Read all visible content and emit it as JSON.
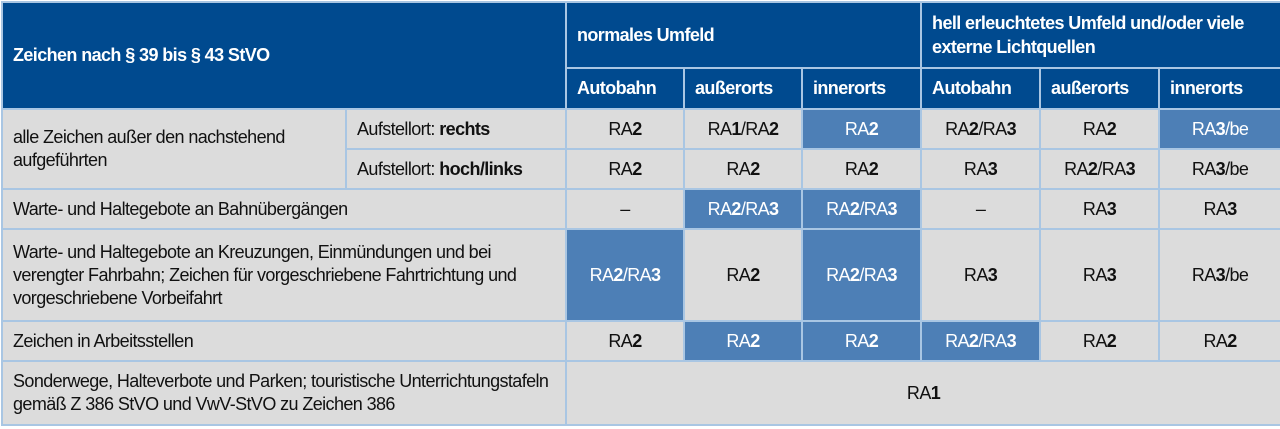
{
  "header": {
    "title": "Zeichen nach § 39 bis § 43 StVO",
    "group_normal": "normales Umfeld",
    "group_bright": "hell erleuchtetes Umfeld und/oder viele externe Lichtquellen",
    "columns": [
      "Autobahn",
      "außerorts",
      "innerorts",
      "Autobahn",
      "außerorts",
      "innerorts"
    ]
  },
  "highlight_color": "#4d7fb6",
  "header_color": "#004a8f",
  "rows": [
    {
      "label": "alle Zeichen außer den nachstehend aufgeführten",
      "sub_prefix": "Aufstellort:",
      "sub_bold": "rechts",
      "values": [
        "RA2",
        "RA1/RA2",
        "RA2",
        "RA2/RA3",
        "RA2",
        "RA3/be"
      ],
      "highlighted": [
        false,
        false,
        true,
        false,
        false,
        true
      ]
    },
    {
      "sub_prefix": "Aufstellort:",
      "sub_bold": "hoch/links",
      "values": [
        "RA2",
        "RA2",
        "RA2",
        "RA3",
        "RA2/RA3",
        "RA3/be"
      ],
      "highlighted": [
        false,
        false,
        false,
        false,
        false,
        false
      ]
    },
    {
      "label": "Warte- und Haltegebote an Bahnübergängen",
      "values": [
        "–",
        "RA2/RA3",
        "RA2/RA3",
        "–",
        "RA3",
        "RA3"
      ],
      "highlighted": [
        false,
        true,
        true,
        false,
        false,
        false
      ]
    },
    {
      "label": "Warte- und Haltegebote an Kreuzungen, Einmündungen und bei verengter Fahrbahn; Zeichen für vorgeschriebene Fahrtrichtung und vorgeschriebene Vorbeifahrt",
      "values": [
        "RA2/RA3",
        "RA2",
        "RA2/RA3",
        "RA3",
        "RA3",
        "RA3/be"
      ],
      "highlighted": [
        true,
        false,
        true,
        false,
        false,
        false
      ]
    },
    {
      "label": "Zeichen in Arbeitsstellen",
      "values": [
        "RA2",
        "RA2",
        "RA2",
        "RA2/RA3",
        "RA2",
        "RA2"
      ],
      "highlighted": [
        false,
        true,
        true,
        true,
        false,
        false
      ]
    },
    {
      "label": "Sonderwege, Halteverbote und Parken; touristische Unterrichtungstafeln gemäß Z 386 StVO und VwV-StVO zu Zeichen 386",
      "span_value": "RA1"
    }
  ]
}
